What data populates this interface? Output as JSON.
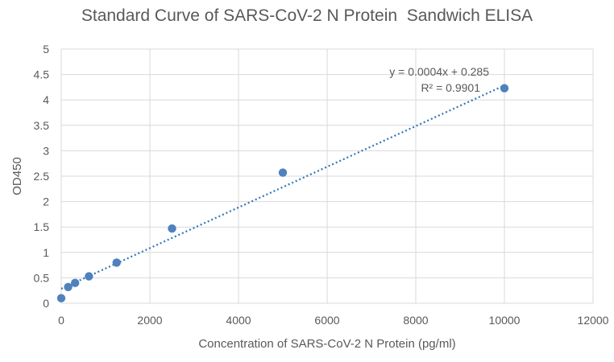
{
  "chart_data": {
    "type": "scatter",
    "title": "Standard Curve of SARS-CoV-2 N Protein  Sandwich ELISA",
    "xlabel": "Concentration of SARS-CoV-2 N Protein (pg/ml)",
    "ylabel": "OD450",
    "xlim": [
      0,
      12000
    ],
    "ylim": [
      0,
      5
    ],
    "x_ticks": [
      "0",
      "2000",
      "4000",
      "6000",
      "8000",
      "10000",
      "12000"
    ],
    "y_ticks": [
      "0",
      "0.5",
      "1",
      "1.5",
      "2",
      "2.5",
      "3",
      "3.5",
      "4",
      "4.5",
      "5"
    ],
    "grid": true,
    "series": [
      {
        "x": [
          0,
          156.25,
          312.5,
          625,
          1250,
          2500,
          5000,
          10000
        ],
        "y": [
          0.1,
          0.32,
          0.4,
          0.53,
          0.8,
          1.47,
          2.57,
          4.23
        ]
      }
    ],
    "trendline": {
      "type": "linear",
      "slope": 0.0004,
      "intercept": 0.285,
      "equation": "y = 0.0004x + 0.285",
      "r_squared": "R² = 0.9901"
    },
    "colors": {
      "marker": "#4f81bd",
      "trendline": "#2e75b6",
      "gridline": "#d9d9d9",
      "text": "#595959"
    }
  }
}
